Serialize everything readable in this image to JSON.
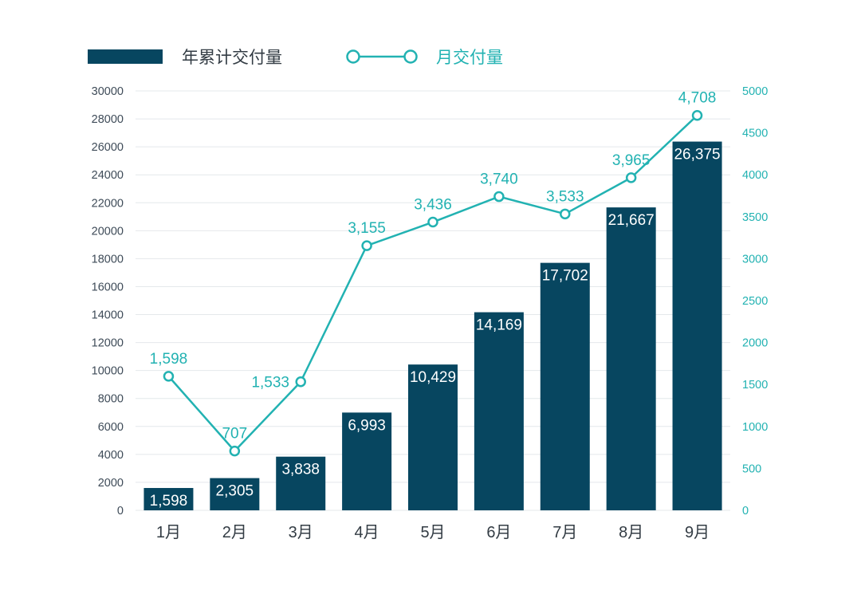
{
  "chart_data": {
    "type": "bar",
    "categories": [
      "1月",
      "2月",
      "3月",
      "4月",
      "5月",
      "6月",
      "7月",
      "8月",
      "9月"
    ],
    "series": [
      {
        "name": "年累计交付量",
        "type": "bar",
        "axis": "left",
        "color": "#074660",
        "values": [
          1598,
          2305,
          3838,
          6993,
          10429,
          14169,
          17702,
          21667,
          26375
        ],
        "labels": [
          "1,598",
          "2,305",
          "3,838",
          "6,993",
          "10,429",
          "14,169",
          "17,702",
          "21,667",
          "26,375"
        ]
      },
      {
        "name": "月交付量",
        "type": "line",
        "axis": "right",
        "color": "#22b2b2",
        "values": [
          1598,
          707,
          1533,
          3155,
          3436,
          3740,
          3533,
          3965,
          4708
        ],
        "labels": [
          "1,598",
          "707",
          "1,533",
          "3,155",
          "3,436",
          "3,740",
          "3,533",
          "3,965",
          "4,708"
        ]
      }
    ],
    "y_left": {
      "ylim": [
        0,
        30000
      ],
      "ticks": [
        0,
        2000,
        4000,
        6000,
        8000,
        10000,
        12000,
        14000,
        16000,
        18000,
        20000,
        22000,
        24000,
        26000,
        28000,
        30000
      ]
    },
    "y_right": {
      "ylim": [
        0,
        5000
      ],
      "ticks": [
        0,
        500,
        1000,
        1500,
        2000,
        2500,
        3000,
        3500,
        4000,
        4500,
        5000
      ]
    },
    "grid": true,
    "legend": "top-left"
  }
}
